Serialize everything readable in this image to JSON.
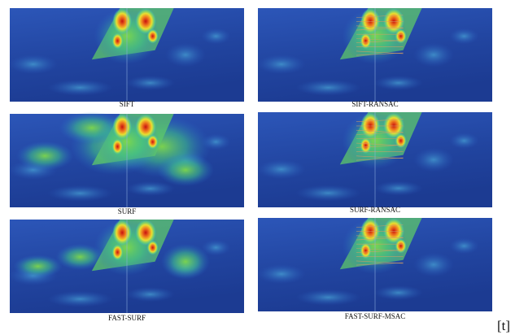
{
  "panels": [
    {
      "caption": "SIFT"
    },
    {
      "caption": "SIFT-RANSAC"
    },
    {
      "caption": "SURF"
    },
    {
      "caption": "SURF-RANSAC"
    },
    {
      "caption": "FAST-SURF"
    },
    {
      "caption": "FAST-SURF-MSAC"
    }
  ],
  "marker": "[t]"
}
